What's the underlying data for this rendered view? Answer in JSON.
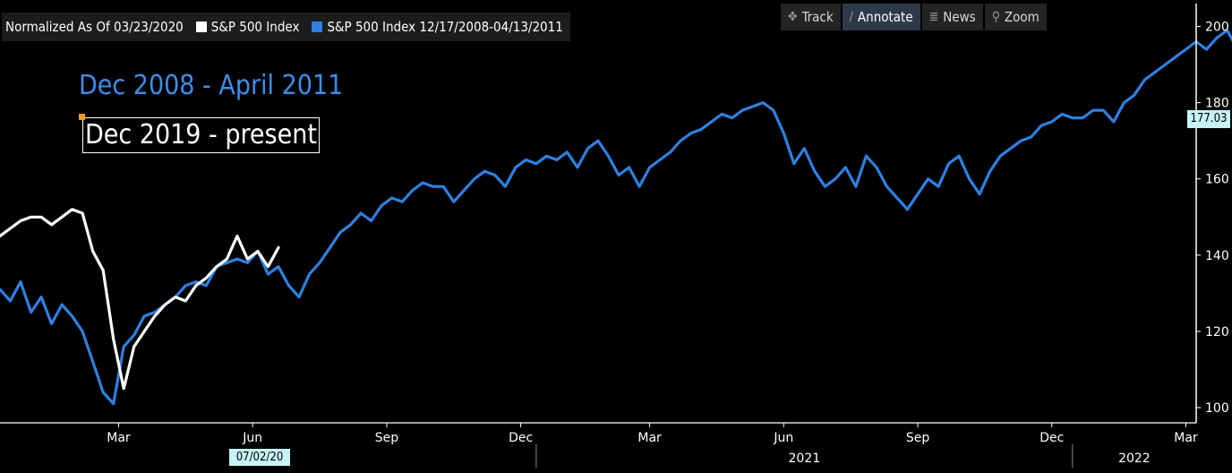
{
  "legend": {
    "normalized_label": "Normalized As Of 03/23/2020",
    "series": [
      {
        "label": "S&P 500 Index",
        "color": "#ffffff"
      },
      {
        "label": "S&P 500 Index 12/17/2008-04/13/2011",
        "color": "#2f80e0"
      }
    ]
  },
  "toolbar": [
    {
      "label": "Track",
      "icon": "crosshair-icon"
    },
    {
      "label": "Annotate",
      "icon": "pencil-icon"
    },
    {
      "label": "News",
      "icon": "news-icon"
    },
    {
      "label": "Zoom",
      "icon": "magnifier-icon"
    }
  ],
  "annotations": {
    "blue_text": "Dec 2008 - April 2011",
    "white_text": "Dec 2019 - present"
  },
  "last_value_tag": "177.03",
  "cursor_date_tag": "07/02/20",
  "chart_data": {
    "type": "line",
    "title": "",
    "xlabel": "",
    "ylabel": "",
    "ylim": [
      96,
      206
    ],
    "xlim": [
      0,
      116
    ],
    "yticks": [
      100,
      120,
      140,
      160,
      180,
      200
    ],
    "x_unit": "weeks after 2019-12-16",
    "month_ticks": [
      {
        "x": 11.5,
        "label": "Mar"
      },
      {
        "x": 24.5,
        "label": "Jun"
      },
      {
        "x": 37.5,
        "label": "Sep"
      },
      {
        "x": 50.5,
        "label": "Dec"
      },
      {
        "x": 63,
        "label": "Mar"
      },
      {
        "x": 76,
        "label": "Jun"
      },
      {
        "x": 89,
        "label": "Sep"
      },
      {
        "x": 102,
        "label": "Dec"
      },
      {
        "x": 115,
        "label": "Mar"
      }
    ],
    "year_labels": [
      {
        "x": 78,
        "label": "2021"
      },
      {
        "x": 110,
        "label": "2022"
      }
    ],
    "year_dividers": [
      52,
      104
    ],
    "series": [
      {
        "name": "S&P 500 Index",
        "color": "#ffffff",
        "x": [
          0,
          1,
          2,
          3,
          4,
          5,
          6,
          7,
          8,
          9,
          10,
          11,
          12,
          13,
          14,
          15,
          16,
          17,
          18,
          19,
          20,
          21,
          22,
          23,
          24,
          25,
          26,
          27
        ],
        "y": [
          145,
          147,
          149,
          150,
          150,
          148,
          150,
          152,
          151,
          141,
          136,
          118,
          105,
          116,
          120,
          124,
          127,
          129,
          128,
          132,
          134,
          137,
          139,
          145,
          139,
          141,
          137,
          142
        ]
      },
      {
        "name": "S&P 500 Index 12/17/2008-04/13/2011",
        "color": "#2f80e0",
        "x": [
          0,
          1,
          2,
          3,
          4,
          5,
          6,
          7,
          8,
          9,
          10,
          11,
          12,
          13,
          14,
          15,
          16,
          17,
          18,
          19,
          20,
          21,
          22,
          23,
          24,
          25,
          26,
          27,
          28,
          29,
          30,
          31,
          32,
          33,
          34,
          35,
          36,
          37,
          38,
          39,
          40,
          41,
          42,
          43,
          44,
          45,
          46,
          47,
          48,
          49,
          50,
          51,
          52,
          53,
          54,
          55,
          56,
          57,
          58,
          59,
          60,
          61,
          62,
          63,
          64,
          65,
          66,
          67,
          68,
          69,
          70,
          71,
          72,
          73,
          74,
          75,
          76,
          77,
          78,
          79,
          80,
          81,
          82,
          83,
          84,
          85,
          86,
          87,
          88,
          89,
          90,
          91,
          92,
          93,
          94,
          95,
          96,
          97,
          98,
          99,
          100,
          101,
          102,
          103,
          104,
          105,
          106,
          107,
          108,
          109,
          110,
          111,
          112,
          113,
          114,
          115,
          116,
          117,
          118,
          119,
          120,
          121
        ],
        "y": [
          131,
          128,
          133,
          125,
          129,
          122,
          127,
          124,
          120,
          112,
          104,
          101,
          116,
          119,
          124,
          125,
          127,
          129,
          132,
          133,
          132,
          137,
          138,
          139,
          138,
          141,
          135,
          137,
          132,
          129,
          135,
          138,
          142,
          146,
          148,
          151,
          149,
          153,
          155,
          154,
          157,
          159,
          158,
          158,
          154,
          157,
          160,
          162,
          161,
          158,
          163,
          165,
          164,
          166,
          165,
          167,
          163,
          168,
          170,
          166,
          161,
          163,
          158,
          163,
          165,
          167,
          170,
          172,
          173,
          175,
          177,
          176,
          178,
          179,
          180,
          178,
          172,
          164,
          168,
          162,
          158,
          160,
          163,
          158,
          166,
          163,
          158,
          155,
          152,
          156,
          160,
          158,
          164,
          166,
          160,
          156,
          162,
          166,
          168,
          170,
          171,
          174,
          175,
          177,
          176,
          176,
          178,
          178,
          175,
          180,
          182,
          186,
          188,
          190,
          192,
          194,
          196,
          194,
          197,
          199,
          194,
          198
        ]
      }
    ]
  }
}
